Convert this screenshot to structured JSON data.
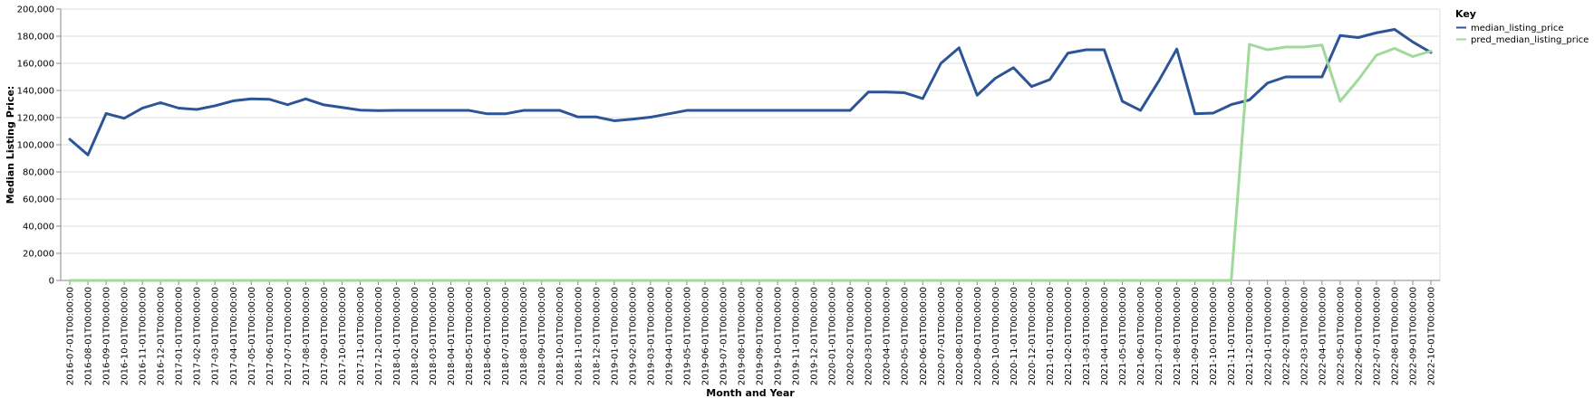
{
  "chart_data": {
    "type": "line",
    "xlabel": "Month and Year",
    "ylabel": "Median Listing Price:",
    "ylim": [
      0,
      200000
    ],
    "yticks": [
      0,
      20000,
      40000,
      60000,
      80000,
      100000,
      120000,
      140000,
      160000,
      180000,
      200000
    ],
    "ytick_labels": [
      "0",
      "20,000",
      "40,000",
      "60,000",
      "80,000",
      "100,000",
      "120,000",
      "140,000",
      "160,000",
      "180,000",
      "200,000"
    ],
    "grid": true,
    "legend": {
      "title": "Key",
      "position": "top-right"
    },
    "x": [
      "2016-07-01T00:00:00",
      "2016-08-01T00:00:00",
      "2016-09-01T00:00:00",
      "2016-10-01T00:00:00",
      "2016-11-01T00:00:00",
      "2016-12-01T00:00:00",
      "2017-01-01T00:00:00",
      "2017-02-01T00:00:00",
      "2017-03-01T00:00:00",
      "2017-04-01T00:00:00",
      "2017-05-01T00:00:00",
      "2017-06-01T00:00:00",
      "2017-07-01T00:00:00",
      "2017-08-01T00:00:00",
      "2017-09-01T00:00:00",
      "2017-10-01T00:00:00",
      "2017-11-01T00:00:00",
      "2017-12-01T00:00:00",
      "2018-01-01T00:00:00",
      "2018-02-01T00:00:00",
      "2018-03-01T00:00:00",
      "2018-04-01T00:00:00",
      "2018-05-01T00:00:00",
      "2018-06-01T00:00:00",
      "2018-07-01T00:00:00",
      "2018-08-01T00:00:00",
      "2018-09-01T00:00:00",
      "2018-10-01T00:00:00",
      "2018-11-01T00:00:00",
      "2018-12-01T00:00:00",
      "2019-01-01T00:00:00",
      "2019-02-01T00:00:00",
      "2019-03-01T00:00:00",
      "2019-04-01T00:00:00",
      "2019-05-01T00:00:00",
      "2019-06-01T00:00:00",
      "2019-07-01T00:00:00",
      "2019-08-01T00:00:00",
      "2019-09-01T00:00:00",
      "2019-10-01T00:00:00",
      "2019-11-01T00:00:00",
      "2019-12-01T00:00:00",
      "2020-01-01T00:00:00",
      "2020-02-01T00:00:00",
      "2020-03-01T00:00:00",
      "2020-04-01T00:00:00",
      "2020-05-01T00:00:00",
      "2020-06-01T00:00:00",
      "2020-07-01T00:00:00",
      "2020-08-01T00:00:00",
      "2020-09-01T00:00:00",
      "2020-10-01T00:00:00",
      "2020-11-01T00:00:00",
      "2020-12-01T00:00:00",
      "2021-01-01T00:00:00",
      "2021-02-01T00:00:00",
      "2021-03-01T00:00:00",
      "2021-04-01T00:00:00",
      "2021-05-01T00:00:00",
      "2021-06-01T00:00:00",
      "2021-07-01T00:00:00",
      "2021-08-01T00:00:00",
      "2021-09-01T00:00:00",
      "2021-10-01T00:00:00",
      "2021-11-01T00:00:00",
      "2021-12-01T00:00:00",
      "2022-01-01T00:00:00",
      "2022-02-01T00:00:00",
      "2022-03-01T00:00:00",
      "2022-04-01T00:00:00",
      "2022-05-01T00:00:00",
      "2022-06-01T00:00:00",
      "2022-07-01T00:00:00",
      "2022-08-01T00:00:00",
      "2022-09-01T00:00:00",
      "2022-10-01T00:00:00"
    ],
    "series": [
      {
        "name": "median_listing_price",
        "color": "#2c5597",
        "values": [
          104000,
          92500,
          123000,
          119500,
          127000,
          131000,
          127000,
          126000,
          128700,
          132300,
          133800,
          133500,
          129500,
          133800,
          129400,
          127500,
          125500,
          125200,
          125300,
          125300,
          125300,
          125300,
          125300,
          122800,
          122800,
          125300,
          125300,
          125300,
          120500,
          120500,
          117700,
          118800,
          120300,
          122800,
          125300,
          125300,
          125300,
          125300,
          125300,
          125300,
          125300,
          125300,
          125300,
          125300,
          138800,
          138800,
          138300,
          134000,
          160000,
          171400,
          136500,
          149000,
          156800,
          142900,
          148000,
          167500,
          170000,
          170000,
          132000,
          125300,
          146800,
          170500,
          122800,
          123300,
          129600,
          133000,
          145500,
          150000,
          150000,
          150000,
          180500,
          179000,
          182500,
          185000,
          175800,
          168000
        ]
      },
      {
        "name": "pred_median_listing_price",
        "color": "#a1d99b",
        "values": [
          0,
          0,
          0,
          0,
          0,
          0,
          0,
          0,
          0,
          0,
          0,
          0,
          0,
          0,
          0,
          0,
          0,
          0,
          0,
          0,
          0,
          0,
          0,
          0,
          0,
          0,
          0,
          0,
          0,
          0,
          0,
          0,
          0,
          0,
          0,
          0,
          0,
          0,
          0,
          0,
          0,
          0,
          0,
          0,
          0,
          0,
          0,
          0,
          0,
          0,
          0,
          0,
          0,
          0,
          0,
          0,
          0,
          0,
          0,
          0,
          0,
          0,
          0,
          0,
          0,
          174000,
          170000,
          172000,
          172000,
          173500,
          132000,
          148000,
          166000,
          171000,
          165000,
          169000
        ]
      }
    ]
  }
}
